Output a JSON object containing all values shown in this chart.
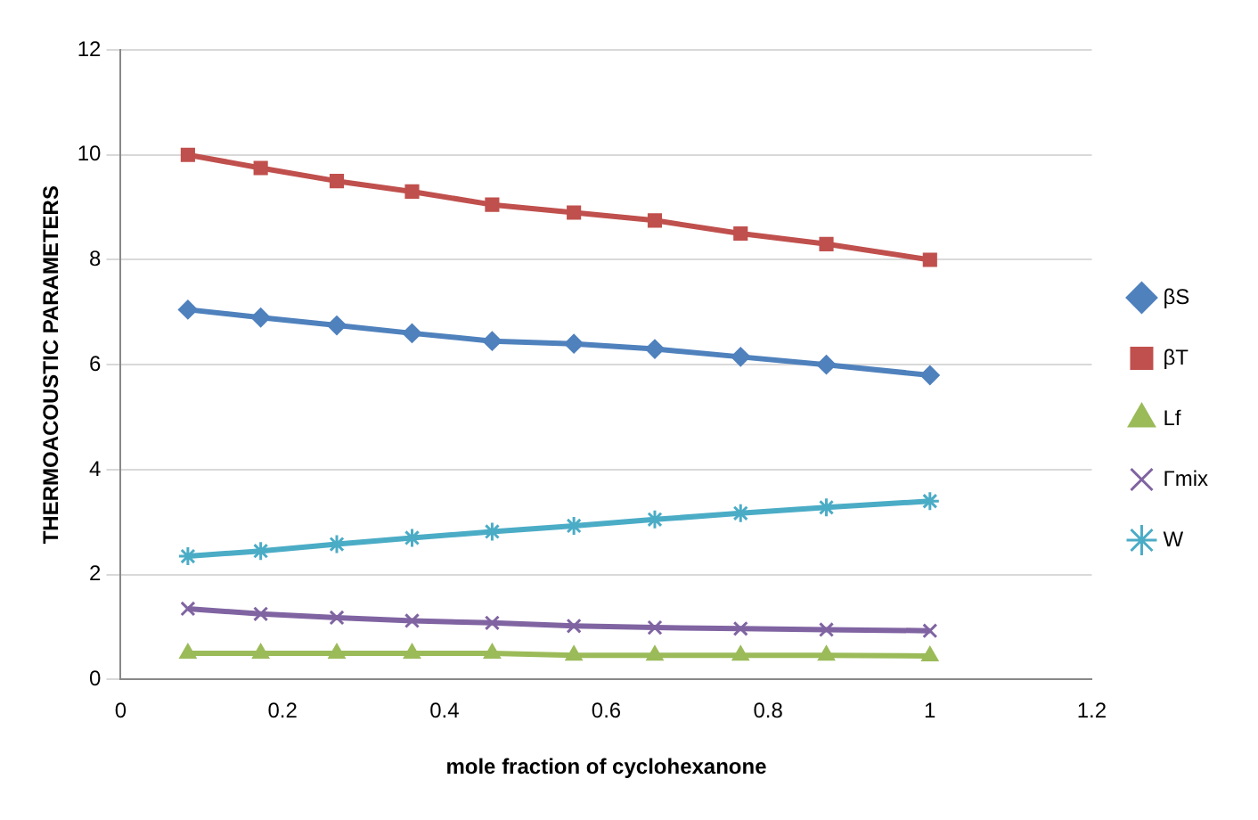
{
  "chart_data": {
    "type": "line",
    "xlabel": "mole fraction of cyclohexanone",
    "ylabel": "THERMOACOUSTIC PARAMETERS",
    "x": [
      0.083,
      0.173,
      0.267,
      0.36,
      0.459,
      0.56,
      0.66,
      0.766,
      0.872,
      1.0
    ],
    "series": [
      {
        "name": "βS",
        "color": "#4f81bd",
        "marker": "diamond",
        "values": [
          7.05,
          6.9,
          6.75,
          6.6,
          6.45,
          6.4,
          6.3,
          6.15,
          6.0,
          5.8
        ]
      },
      {
        "name": "βT",
        "color": "#c0504d",
        "marker": "square",
        "values": [
          10.0,
          9.75,
          9.5,
          9.3,
          9.05,
          8.9,
          8.75,
          8.5,
          8.3,
          8.0
        ]
      },
      {
        "name": "Lf",
        "color": "#9bbb59",
        "marker": "triangle",
        "values": [
          0.5,
          0.5,
          0.5,
          0.5,
          0.5,
          0.46,
          0.46,
          0.46,
          0.46,
          0.45
        ]
      },
      {
        "name": "Γmix",
        "color": "#8064a2",
        "marker": "cross",
        "values": [
          1.35,
          1.25,
          1.18,
          1.12,
          1.08,
          1.02,
          0.99,
          0.97,
          0.95,
          0.93
        ]
      },
      {
        "name": "W",
        "color": "#4bacc6",
        "marker": "cross",
        "values": [
          2.35,
          2.45,
          2.58,
          2.7,
          2.82,
          2.93,
          3.05,
          3.17,
          3.28,
          3.4
        ]
      }
    ],
    "xlim": [
      0,
      1.2
    ],
    "xticks": [
      0,
      0.2,
      0.4,
      0.6,
      0.8,
      1,
      1.2
    ],
    "ylim": [
      0,
      12
    ],
    "yticks": [
      0,
      2,
      4,
      6,
      8,
      10,
      12
    ],
    "grid": "y",
    "legend": "right"
  }
}
